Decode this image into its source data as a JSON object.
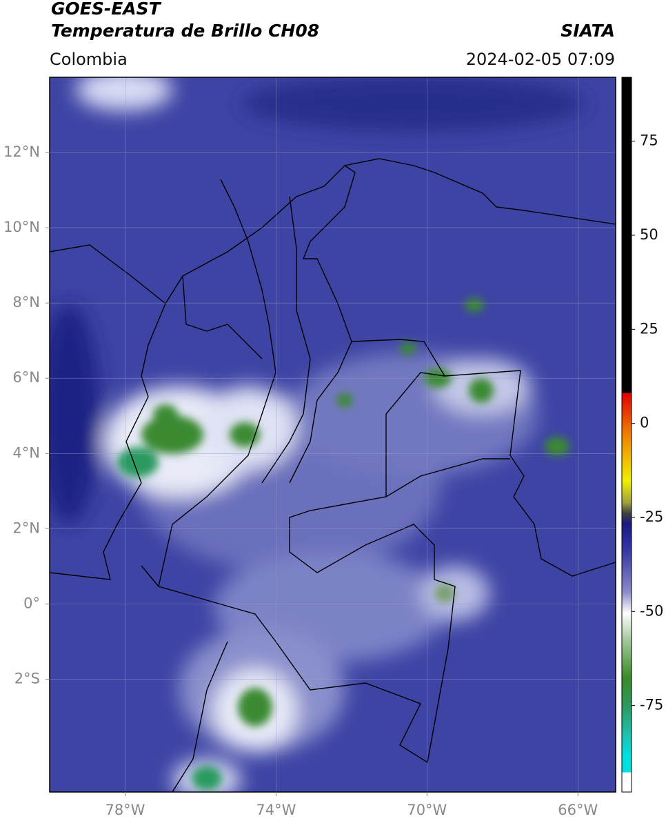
{
  "header": {
    "title_line1": "GOES-EAST",
    "title_line2": "Temperatura de Brillo CH08",
    "region": "Colombia",
    "source": "SIATA",
    "timestamp": "2024-02-05 07:09"
  },
  "map": {
    "lon_lim": [
      -80,
      -65
    ],
    "lat_lim": [
      -5,
      14
    ],
    "lon_ticks": [
      {
        "value": -78,
        "label": "78°W"
      },
      {
        "value": -74,
        "label": "74°W"
      },
      {
        "value": -70,
        "label": "70°W"
      },
      {
        "value": -66,
        "label": "66°W"
      }
    ],
    "lat_ticks": [
      {
        "value": 12,
        "label": "12°N"
      },
      {
        "value": 10,
        "label": "10°N"
      },
      {
        "value": 8,
        "label": "8°N"
      },
      {
        "value": 6,
        "label": "6°N"
      },
      {
        "value": 4,
        "label": "4°N"
      },
      {
        "value": 2,
        "label": "2°N"
      },
      {
        "value": 0,
        "label": "0°"
      },
      {
        "value": -2,
        "label": "2°S"
      }
    ]
  },
  "colorbar": {
    "lim": [
      -98,
      92
    ],
    "ticks": [
      75,
      50,
      25,
      0,
      -25,
      -50,
      -75
    ]
  }
}
